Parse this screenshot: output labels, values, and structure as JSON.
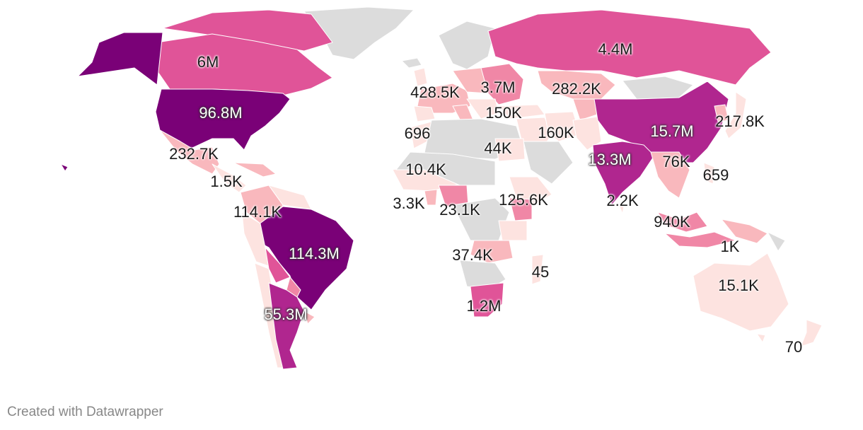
{
  "credit": "Created with Datawrapper",
  "colors": {
    "no_data": "#dcdcdc",
    "scale": [
      "#fde3e0",
      "#f9b8bd",
      "#f087a6",
      "#e05498",
      "#b0268f",
      "#7a0177"
    ]
  },
  "labels": [
    {
      "id": "canada",
      "text": "6M",
      "inverted": false
    },
    {
      "id": "russia",
      "text": "4.4M",
      "inverted": false
    },
    {
      "id": "usa",
      "text": "96.8M",
      "inverted": true
    },
    {
      "id": "europe-west",
      "text": "428.5K",
      "inverted": false
    },
    {
      "id": "europe-east",
      "text": "3.7M",
      "inverted": false
    },
    {
      "id": "kazakhstan",
      "text": "282.2K",
      "inverted": false
    },
    {
      "id": "turkey",
      "text": "150K",
      "inverted": false
    },
    {
      "id": "iran",
      "text": "160K",
      "inverted": false
    },
    {
      "id": "china",
      "text": "15.7M",
      "inverted": true
    },
    {
      "id": "japan",
      "text": "217.8K",
      "inverted": false
    },
    {
      "id": "morocco",
      "text": "696",
      "inverted": false
    },
    {
      "id": "egypt",
      "text": "44K",
      "inverted": false
    },
    {
      "id": "india",
      "text": "13.3M",
      "inverted": true
    },
    {
      "id": "seasia",
      "text": "76K",
      "inverted": false
    },
    {
      "id": "philippines",
      "text": "659",
      "inverted": false
    },
    {
      "id": "mexico",
      "text": "232.7K",
      "inverted": false
    },
    {
      "id": "central-america",
      "text": "1.5K",
      "inverted": false
    },
    {
      "id": "west-africa",
      "text": "10.4K",
      "inverted": false
    },
    {
      "id": "ghana",
      "text": "3.3K",
      "inverted": false
    },
    {
      "id": "nigeria",
      "text": "23.1K",
      "inverted": false
    },
    {
      "id": "kenya",
      "text": "125.6K",
      "inverted": false
    },
    {
      "id": "sri-lanka",
      "text": "2.2K",
      "inverted": false
    },
    {
      "id": "malaysia",
      "text": "940K",
      "inverted": false
    },
    {
      "id": "colombia",
      "text": "114.1K",
      "inverted": false
    },
    {
      "id": "brazil",
      "text": "114.3M",
      "inverted": true
    },
    {
      "id": "indonesia-east",
      "text": "1K",
      "inverted": false
    },
    {
      "id": "zambia",
      "text": "37.4K",
      "inverted": false
    },
    {
      "id": "madagascar",
      "text": "45",
      "inverted": false
    },
    {
      "id": "australia",
      "text": "15.1K",
      "inverted": false
    },
    {
      "id": "south-africa",
      "text": "1.2M",
      "inverted": false
    },
    {
      "id": "argentina",
      "text": "55.3M",
      "inverted": true
    },
    {
      "id": "new-zealand",
      "text": "70",
      "inverted": false
    }
  ]
}
